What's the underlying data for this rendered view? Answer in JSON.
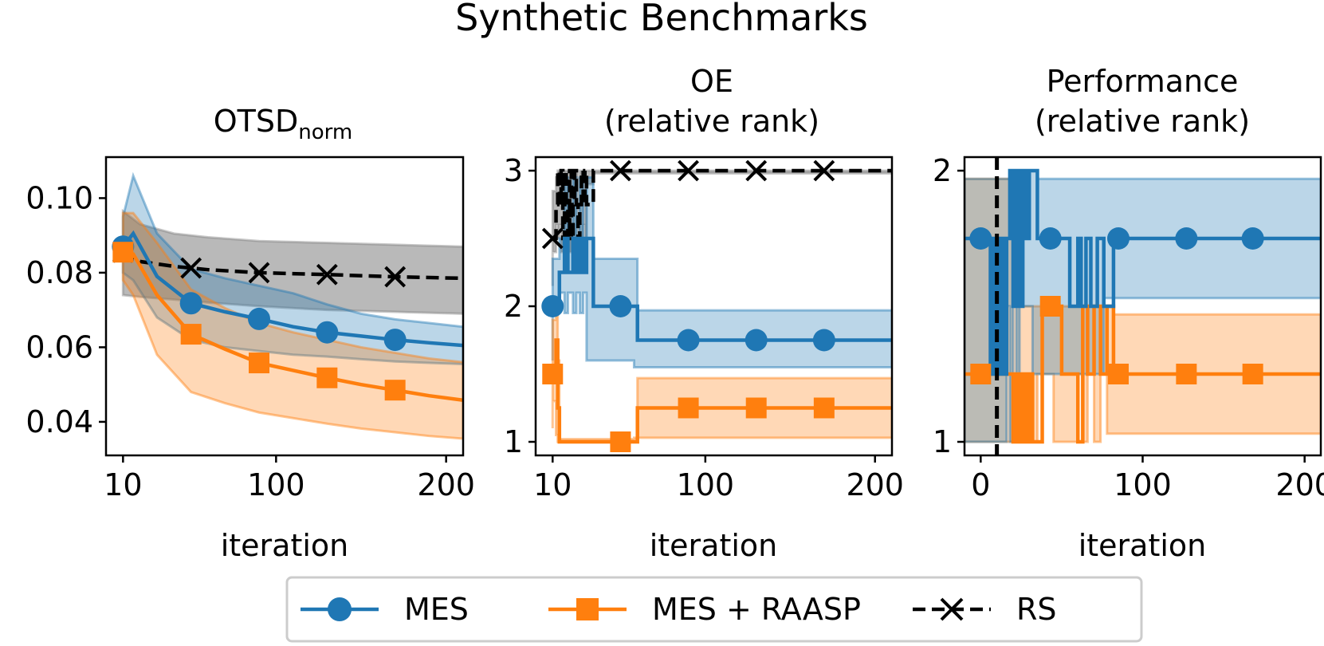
{
  "title": "Synthetic Benchmarks",
  "colors": {
    "mes": "#1f77b4",
    "raasp": "#ff7f0e",
    "rs": "#000000",
    "rs_band": "#808080"
  },
  "legend": [
    {
      "name": "MES",
      "marker": "circle",
      "color": "#1f77b4",
      "dash": ""
    },
    {
      "name": "MES + RAASP",
      "marker": "square",
      "color": "#ff7f0e",
      "dash": ""
    },
    {
      "name": "RS",
      "marker": "x",
      "color": "#000000",
      "dash": "dashed"
    }
  ],
  "chart_data": [
    {
      "type": "line",
      "title": "OTSD",
      "title_sub": "norm",
      "xlabel": "iteration",
      "xlim": [
        0,
        210
      ],
      "ylim": [
        0.031,
        0.111
      ],
      "xticks": [
        10,
        100,
        200
      ],
      "yticks": [
        0.04,
        0.06,
        0.08,
        0.1
      ],
      "ytick_labels": [
        "0.04",
        "0.06",
        "0.08",
        "0.10"
      ],
      "marker_x": [
        10,
        50,
        90,
        130,
        170
      ],
      "series": [
        {
          "name": "RS",
          "color": "#000000",
          "band_color": "#808080",
          "dash": "dashed",
          "marker": "x",
          "x": [
            10,
            20,
            40,
            60,
            90,
            130,
            170,
            210
          ],
          "y": [
            0.0855,
            0.083,
            0.0817,
            0.0808,
            0.08,
            0.0795,
            0.0789,
            0.0785
          ],
          "lo": [
            0.074,
            0.0735,
            0.0728,
            0.072,
            0.071,
            0.07,
            0.0695,
            0.069
          ],
          "hi": [
            0.0965,
            0.093,
            0.0905,
            0.0895,
            0.0885,
            0.088,
            0.0875,
            0.087
          ]
        },
        {
          "name": "MES",
          "color": "#1f77b4",
          "band_color": "#1f77b4",
          "dash": "",
          "marker": "circle",
          "x": [
            10,
            16,
            30,
            50,
            70,
            90,
            110,
            130,
            150,
            170,
            190,
            210
          ],
          "y": [
            0.087,
            0.0905,
            0.079,
            0.0718,
            0.0695,
            0.0676,
            0.0655,
            0.064,
            0.063,
            0.062,
            0.0612,
            0.0605
          ],
          "lo": [
            0.08,
            0.078,
            0.068,
            0.062,
            0.06,
            0.059,
            0.058,
            0.0575,
            0.0568,
            0.0562,
            0.0558,
            0.0555
          ],
          "hi": [
            0.095,
            0.106,
            0.0905,
            0.081,
            0.0785,
            0.0765,
            0.0745,
            0.0715,
            0.069,
            0.0675,
            0.0665,
            0.0655
          ]
        },
        {
          "name": "MES + RAASP",
          "color": "#ff7f0e",
          "band_color": "#ff7f0e",
          "dash": "",
          "marker": "square",
          "x": [
            10,
            16,
            30,
            50,
            70,
            90,
            110,
            130,
            150,
            170,
            190,
            210
          ],
          "y": [
            0.0855,
            0.085,
            0.074,
            0.0635,
            0.0595,
            0.0558,
            0.0538,
            0.0518,
            0.05,
            0.0485,
            0.047,
            0.0458
          ],
          "lo": [
            0.078,
            0.074,
            0.058,
            0.048,
            0.045,
            0.0425,
            0.041,
            0.0395,
            0.0382,
            0.0372,
            0.0362,
            0.0355
          ],
          "hi": [
            0.096,
            0.096,
            0.088,
            0.0755,
            0.0705,
            0.0665,
            0.064,
            0.062,
            0.06,
            0.0585,
            0.057,
            0.056
          ]
        }
      ]
    },
    {
      "type": "line",
      "title": "OE",
      "title_line2": "(relative rank)",
      "xlabel": "iteration",
      "xlim": [
        0,
        210
      ],
      "ylim": [
        0.9,
        3.1
      ],
      "xticks": [
        10,
        100,
        200
      ],
      "yticks": [
        1,
        2,
        3
      ],
      "ytick_labels": [
        "1",
        "2",
        "3"
      ],
      "marker_x": [
        10,
        50,
        90,
        130,
        170
      ],
      "series": [
        {
          "name": "RS",
          "color": "#000000",
          "band_color": "#808080",
          "dash": "dashed",
          "marker": "x",
          "step": true,
          "x": [
            10,
            12,
            13,
            14,
            15,
            16,
            17,
            18,
            19,
            20,
            21,
            22,
            23,
            24,
            25,
            26,
            27,
            28,
            29,
            30,
            34,
            36,
            210
          ],
          "y": [
            2.5,
            2.75,
            3.0,
            2.75,
            3.0,
            2.5,
            3.0,
            2.75,
            2.5,
            3.0,
            2.5,
            2.75,
            3.0,
            2.75,
            2.5,
            2.75,
            3.0,
            2.75,
            3.0,
            2.75,
            3.0,
            3.0,
            3.0
          ],
          "lo": [
            2.15,
            2.4,
            2.6,
            2.5,
            2.6,
            2.4,
            2.6,
            2.5,
            2.4,
            2.6,
            2.4,
            2.5,
            2.6,
            2.5,
            2.4,
            2.5,
            2.6,
            2.5,
            2.6,
            2.5,
            2.9,
            2.98,
            2.98
          ],
          "hi": [
            2.85,
            2.95,
            3.0,
            3.0,
            3.0,
            2.95,
            3.0,
            3.0,
            2.95,
            3.0,
            2.95,
            3.0,
            3.0,
            3.0,
            2.95,
            3.0,
            3.0,
            3.0,
            3.0,
            3.0,
            3.0,
            3.0,
            3.0
          ]
        },
        {
          "name": "MES",
          "color": "#1f77b4",
          "band_color": "#1f77b4",
          "dash": "",
          "marker": "circle",
          "step": true,
          "x": [
            10,
            14,
            17,
            19,
            22,
            24,
            26,
            28,
            30,
            34,
            58,
            60,
            210
          ],
          "y": [
            2.0,
            2.25,
            2.5,
            2.25,
            2.5,
            2.25,
            2.5,
            2.25,
            2.5,
            2.0,
            2.0,
            1.75,
            1.75
          ],
          "lo": [
            1.6,
            2.0,
            2.1,
            1.95,
            2.1,
            1.95,
            2.1,
            1.95,
            2.1,
            1.6,
            1.6,
            1.55,
            1.55
          ],
          "hi": [
            2.35,
            2.5,
            2.95,
            2.5,
            2.95,
            2.5,
            2.95,
            2.5,
            2.95,
            2.35,
            2.35,
            1.97,
            1.97
          ]
        },
        {
          "name": "MES + RAASP",
          "color": "#ff7f0e",
          "band_color": "#ff7f0e",
          "dash": "",
          "marker": "square",
          "step": true,
          "x": [
            10,
            12,
            13,
            14,
            50,
            58,
            60,
            210
          ],
          "y": [
            1.5,
            1.75,
            1.25,
            1.0,
            1.0,
            1.0,
            1.25,
            1.25
          ],
          "lo": [
            1.1,
            1.3,
            1.05,
            1.0,
            1.0,
            1.0,
            1.03,
            1.03
          ],
          "hi": [
            1.9,
            1.95,
            1.6,
            1.02,
            1.02,
            1.02,
            1.47,
            1.47
          ]
        }
      ]
    },
    {
      "type": "line",
      "title": "Performance",
      "title_line2": "(relative rank)",
      "xlabel": "iteration",
      "xlim": [
        -10,
        210
      ],
      "ylim": [
        0.95,
        2.05
      ],
      "xticks": [
        0,
        100,
        200
      ],
      "yticks": [
        1,
        2
      ],
      "ytick_labels": [
        "1",
        "2"
      ],
      "vline_x": 10,
      "marker_x": [
        0,
        43,
        85,
        127,
        168
      ],
      "series": [
        {
          "name": "MES + RAASP",
          "color": "#ff7f0e",
          "band_color": "#ff7f0e",
          "dash": "",
          "marker": "square",
          "step": true,
          "x": [
            -10,
            8,
            10,
            12,
            14,
            16,
            18,
            20,
            22,
            24,
            26,
            28,
            30,
            32,
            35,
            38,
            45,
            50,
            55,
            60,
            63,
            66,
            70,
            74,
            78,
            82,
            210
          ],
          "y": [
            1.25,
            1.25,
            1.5,
            1.25,
            1.5,
            1.25,
            1.25,
            1.0,
            1.25,
            1.0,
            1.25,
            1.0,
            1.25,
            1.0,
            1.0,
            1.5,
            1.5,
            1.25,
            1.25,
            1.0,
            1.5,
            1.25,
            1.5,
            1.25,
            1.5,
            1.25,
            1.25
          ],
          "lo": [
            1.0,
            1.0,
            1.0,
            1.0,
            1.0,
            1.0,
            1.0,
            1.0,
            1.0,
            1.0,
            1.0,
            1.0,
            1.0,
            1.0,
            1.0,
            1.25,
            1.25,
            1.0,
            1.0,
            1.0,
            1.25,
            1.0,
            1.25,
            1.0,
            1.25,
            1.03,
            1.03
          ],
          "hi": [
            1.97,
            1.97,
            1.97,
            1.97,
            1.97,
            1.97,
            1.97,
            1.5,
            1.5,
            1.5,
            1.5,
            1.5,
            1.5,
            1.5,
            1.5,
            1.5,
            1.5,
            1.5,
            1.5,
            1.5,
            1.5,
            1.5,
            1.5,
            1.5,
            1.5,
            1.47,
            1.47
          ]
        },
        {
          "name": "MES",
          "color": "#1f77b4",
          "band_color": "#1f77b4",
          "dash": "",
          "marker": "circle",
          "step": true,
          "x": [
            -10,
            4,
            6,
            8,
            10,
            12,
            14,
            16,
            18,
            20,
            22,
            24,
            26,
            28,
            30,
            32,
            35,
            40,
            50,
            55,
            60,
            62,
            65,
            68,
            72,
            76,
            82,
            210
          ],
          "y": [
            1.75,
            1.75,
            1.25,
            1.75,
            1.25,
            1.75,
            1.25,
            1.75,
            2.0,
            1.5,
            2.0,
            1.5,
            2.0,
            1.75,
            2.0,
            2.0,
            1.75,
            1.75,
            1.75,
            1.5,
            1.75,
            1.5,
            1.75,
            1.5,
            1.75,
            1.5,
            1.75,
            1.75
          ],
          "lo": [
            1.0,
            1.0,
            1.0,
            1.0,
            1.0,
            1.0,
            1.0,
            1.0,
            1.5,
            1.0,
            1.5,
            1.0,
            1.5,
            1.5,
            1.5,
            1.5,
            1.25,
            1.25,
            1.25,
            1.25,
            1.25,
            1.25,
            1.25,
            1.25,
            1.25,
            1.25,
            1.53,
            1.53
          ],
          "hi": [
            1.97,
            1.97,
            1.97,
            1.97,
            1.97,
            1.97,
            1.97,
            1.97,
            2.0,
            2.0,
            2.0,
            2.0,
            2.0,
            2.0,
            2.0,
            2.0,
            1.97,
            1.97,
            1.97,
            1.97,
            1.97,
            1.97,
            1.97,
            1.97,
            1.97,
            1.97,
            1.97,
            1.97
          ]
        }
      ]
    }
  ]
}
